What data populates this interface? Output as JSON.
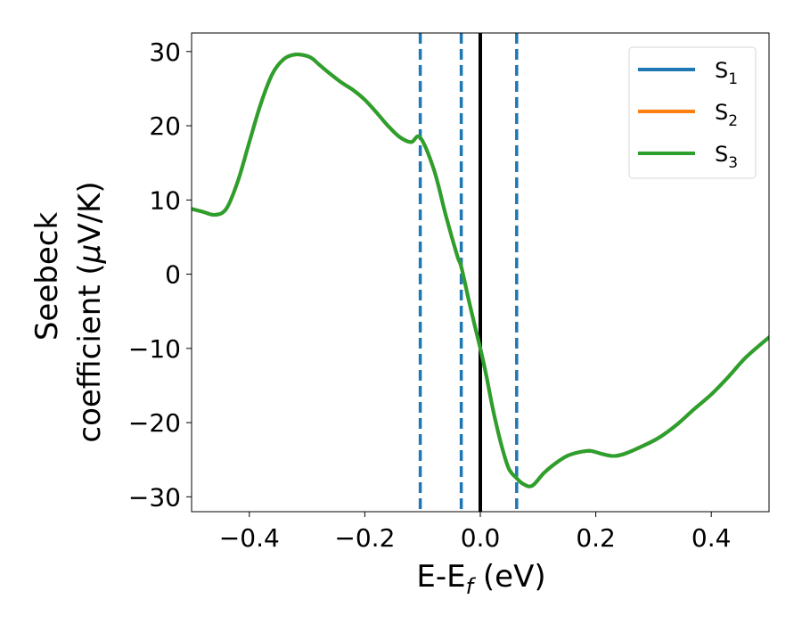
{
  "chart_data": {
    "type": "line",
    "xlabel": "E-E",
    "xlabel_sub": "f",
    "xlabel_unit": " (eV)",
    "ylabel_line1": "Seebeck",
    "ylabel_line2": "coefficient  (",
    "ylabel_mu": "μ",
    "ylabel_unit": "V/K)",
    "xlim": [
      -0.5,
      0.5
    ],
    "ylim": [
      -32,
      32.5
    ],
    "x_ticks": [
      -0.4,
      -0.2,
      0.0,
      0.2,
      0.4
    ],
    "x_tick_labels": [
      "−0.4",
      "−0.2",
      "0.0",
      "0.2",
      "0.4"
    ],
    "y_ticks": [
      30,
      20,
      10,
      0,
      -10,
      -20,
      -30
    ],
    "y_tick_labels": [
      "30",
      "20",
      "10",
      "0",
      "−10",
      "−20",
      "−30"
    ],
    "legend_position": "top-right",
    "vertical_lines": [
      {
        "x": -0.104,
        "style": "dashed",
        "color": "#1f77b4"
      },
      {
        "x": -0.033,
        "style": "dashed",
        "color": "#1f77b4"
      },
      {
        "x": 0.0,
        "style": "solid",
        "color": "#000000"
      },
      {
        "x": 0.063,
        "style": "dashed",
        "color": "#1f77b4"
      }
    ],
    "series": [
      {
        "name": "S",
        "sub": "1",
        "color": "#1f77b4",
        "x": [
          -0.5,
          -0.48,
          -0.46,
          -0.44,
          -0.42,
          -0.4,
          -0.38,
          -0.36,
          -0.34,
          -0.32,
          -0.3,
          -0.29,
          -0.28,
          -0.26,
          -0.24,
          -0.22,
          -0.2,
          -0.18,
          -0.16,
          -0.14,
          -0.12,
          -0.104,
          -0.08,
          -0.06,
          -0.04,
          -0.033,
          -0.02,
          -0.01,
          0.0,
          0.01,
          0.02,
          0.03,
          0.04,
          0.05,
          0.063,
          0.075,
          0.09,
          0.11,
          0.13,
          0.15,
          0.17,
          0.19,
          0.21,
          0.23,
          0.25,
          0.28,
          0.31,
          0.34,
          0.37,
          0.4,
          0.43,
          0.46,
          0.5
        ],
        "y": [
          8.8,
          8.4,
          8.0,
          8.8,
          12.5,
          17.8,
          23.0,
          27.0,
          29.0,
          29.6,
          29.4,
          29.0,
          28.3,
          27.0,
          25.8,
          24.8,
          23.5,
          21.8,
          20.0,
          18.5,
          17.8,
          18.4,
          14.0,
          8.0,
          2.5,
          1.0,
          -3.5,
          -6.8,
          -10.0,
          -13.5,
          -17.5,
          -21.0,
          -24.0,
          -26.3,
          -27.5,
          -28.3,
          -28.5,
          -26.8,
          -25.5,
          -24.5,
          -24.0,
          -23.8,
          -24.2,
          -24.5,
          -24.2,
          -23.2,
          -22.0,
          -20.3,
          -18.2,
          -16.2,
          -13.8,
          -11.2,
          -8.5
        ]
      },
      {
        "name": "S",
        "sub": "2",
        "color": "#ff7f0e",
        "x": [
          -0.5,
          -0.48,
          -0.46,
          -0.44,
          -0.42,
          -0.4,
          -0.38,
          -0.36,
          -0.34,
          -0.32,
          -0.3,
          -0.29,
          -0.28,
          -0.26,
          -0.24,
          -0.22,
          -0.2,
          -0.18,
          -0.16,
          -0.14,
          -0.12,
          -0.104,
          -0.08,
          -0.06,
          -0.04,
          -0.033,
          -0.02,
          -0.01,
          0.0,
          0.01,
          0.02,
          0.03,
          0.04,
          0.05,
          0.063,
          0.075,
          0.09,
          0.11,
          0.13,
          0.15,
          0.17,
          0.19,
          0.21,
          0.23,
          0.25,
          0.28,
          0.31,
          0.34,
          0.37,
          0.4,
          0.43,
          0.46,
          0.5
        ],
        "y": [
          8.8,
          8.4,
          8.0,
          8.8,
          12.5,
          17.8,
          23.0,
          27.0,
          29.0,
          29.6,
          29.4,
          29.0,
          28.3,
          27.0,
          25.8,
          24.8,
          23.5,
          21.8,
          20.0,
          18.5,
          17.8,
          18.4,
          14.0,
          8.0,
          2.5,
          1.0,
          -3.5,
          -6.8,
          -10.0,
          -13.5,
          -17.5,
          -21.0,
          -24.0,
          -26.3,
          -27.5,
          -28.3,
          -28.5,
          -26.8,
          -25.5,
          -24.5,
          -24.0,
          -23.8,
          -24.2,
          -24.5,
          -24.2,
          -23.2,
          -22.0,
          -20.3,
          -18.2,
          -16.2,
          -13.8,
          -11.2,
          -8.5
        ]
      },
      {
        "name": "S",
        "sub": "3",
        "color": "#2ca02c",
        "x": [
          -0.5,
          -0.48,
          -0.46,
          -0.44,
          -0.42,
          -0.4,
          -0.38,
          -0.36,
          -0.34,
          -0.32,
          -0.3,
          -0.29,
          -0.28,
          -0.26,
          -0.24,
          -0.22,
          -0.2,
          -0.18,
          -0.16,
          -0.14,
          -0.12,
          -0.104,
          -0.08,
          -0.06,
          -0.04,
          -0.033,
          -0.02,
          -0.01,
          0.0,
          0.01,
          0.02,
          0.03,
          0.04,
          0.05,
          0.063,
          0.075,
          0.09,
          0.11,
          0.13,
          0.15,
          0.17,
          0.19,
          0.21,
          0.23,
          0.25,
          0.28,
          0.31,
          0.34,
          0.37,
          0.4,
          0.43,
          0.46,
          0.5
        ],
        "y": [
          8.8,
          8.4,
          8.0,
          8.8,
          12.5,
          17.8,
          23.0,
          27.0,
          29.0,
          29.6,
          29.4,
          29.0,
          28.3,
          27.0,
          25.8,
          24.8,
          23.5,
          21.8,
          20.0,
          18.5,
          17.8,
          18.4,
          14.0,
          8.0,
          2.5,
          1.0,
          -3.5,
          -6.8,
          -10.0,
          -13.5,
          -17.5,
          -21.0,
          -24.0,
          -26.3,
          -27.5,
          -28.3,
          -28.5,
          -26.8,
          -25.5,
          -24.5,
          -24.0,
          -23.8,
          -24.2,
          -24.5,
          -24.2,
          -23.2,
          -22.0,
          -20.3,
          -18.2,
          -16.2,
          -13.8,
          -11.2,
          -8.5
        ]
      }
    ]
  }
}
